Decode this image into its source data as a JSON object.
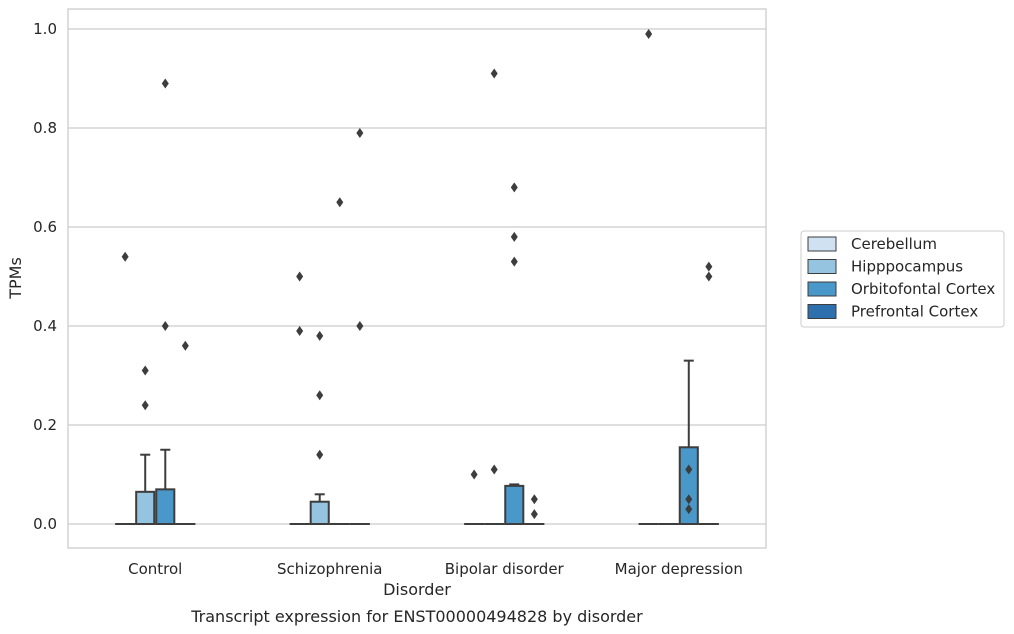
{
  "chart_data": {
    "type": "box",
    "title": "",
    "caption": "Transcript expression for ENST00000494828 by disorder",
    "xlabel": "Disorder",
    "ylabel": "TPMs",
    "ylim": [
      -0.048,
      1.04
    ],
    "yticks": [
      "0.0",
      "0.2",
      "0.4",
      "0.6",
      "0.8",
      "1.0"
    ],
    "ytick_values": [
      0.0,
      0.2,
      0.4,
      0.6,
      0.8,
      1.0
    ],
    "grid": "horizontal",
    "legend_position": "right",
    "categories": [
      "Control",
      "Schizophrenia",
      "Bipolar disorder",
      "Major depression"
    ],
    "series": [
      {
        "name": "Cerebellum",
        "color": "#d0e1f2",
        "boxes": [
          {
            "q1": 0,
            "median": 0,
            "q3": 0,
            "whislo": 0,
            "whishi": 0,
            "fliers": [
              0.54
            ]
          },
          {
            "q1": 0,
            "median": 0,
            "q3": 0,
            "whislo": 0,
            "whishi": 0,
            "fliers": [
              0.5,
              0.39
            ]
          },
          {
            "q1": 0,
            "median": 0,
            "q3": 0,
            "whislo": 0,
            "whishi": 0,
            "fliers": [
              0.1
            ]
          },
          {
            "q1": 0,
            "median": 0,
            "q3": 0,
            "whislo": 0,
            "whishi": 0,
            "fliers": [
              0.99
            ]
          }
        ]
      },
      {
        "name": "Hipppocampus",
        "color": "#94c4df",
        "boxes": [
          {
            "q1": 0,
            "median": 0,
            "q3": 0.065,
            "whislo": 0,
            "whishi": 0.14,
            "fliers": [
              0.31,
              0.24
            ]
          },
          {
            "q1": 0,
            "median": 0,
            "q3": 0.045,
            "whislo": 0,
            "whishi": 0.06,
            "fliers": [
              0.38,
              0.26,
              0.14
            ]
          },
          {
            "q1": 0,
            "median": 0,
            "q3": 0,
            "whislo": 0,
            "whishi": 0,
            "fliers": [
              0.91,
              0.11
            ]
          },
          {
            "q1": 0,
            "median": 0,
            "q3": 0,
            "whislo": 0,
            "whishi": 0,
            "fliers": []
          }
        ]
      },
      {
        "name": "Orbitofontal Cortex",
        "color": "#4a98c9",
        "boxes": [
          {
            "q1": 0,
            "median": 0,
            "q3": 0.07,
            "whislo": 0,
            "whishi": 0.15,
            "fliers": [
              0.89,
              0.4
            ]
          },
          {
            "q1": 0,
            "median": 0,
            "q3": 0,
            "whislo": 0,
            "whishi": 0,
            "fliers": [
              0.65
            ]
          },
          {
            "q1": 0,
            "median": 0,
            "q3": 0.077,
            "whislo": 0,
            "whishi": 0.08,
            "fliers": [
              0.68,
              0.58,
              0.53
            ]
          },
          {
            "q1": 0,
            "median": 0,
            "q3": 0.155,
            "whislo": 0,
            "whishi": 0.33,
            "fliers": [
              0.11,
              0.05,
              0.03
            ]
          }
        ]
      },
      {
        "name": "Prefrontal Cortex",
        "color": "#2e6fae",
        "boxes": [
          {
            "q1": 0,
            "median": 0,
            "q3": 0,
            "whislo": 0,
            "whishi": 0,
            "fliers": [
              0.36
            ]
          },
          {
            "q1": 0,
            "median": 0,
            "q3": 0,
            "whislo": 0,
            "whishi": 0,
            "fliers": [
              0.79,
              0.4
            ]
          },
          {
            "q1": 0,
            "median": 0,
            "q3": 0,
            "whislo": 0,
            "whishi": 0,
            "fliers": [
              0.05,
              0.02
            ]
          },
          {
            "q1": 0,
            "median": 0,
            "q3": 0,
            "whislo": 0,
            "whishi": 0,
            "fliers": [
              0.5,
              0.52
            ]
          }
        ]
      }
    ]
  }
}
